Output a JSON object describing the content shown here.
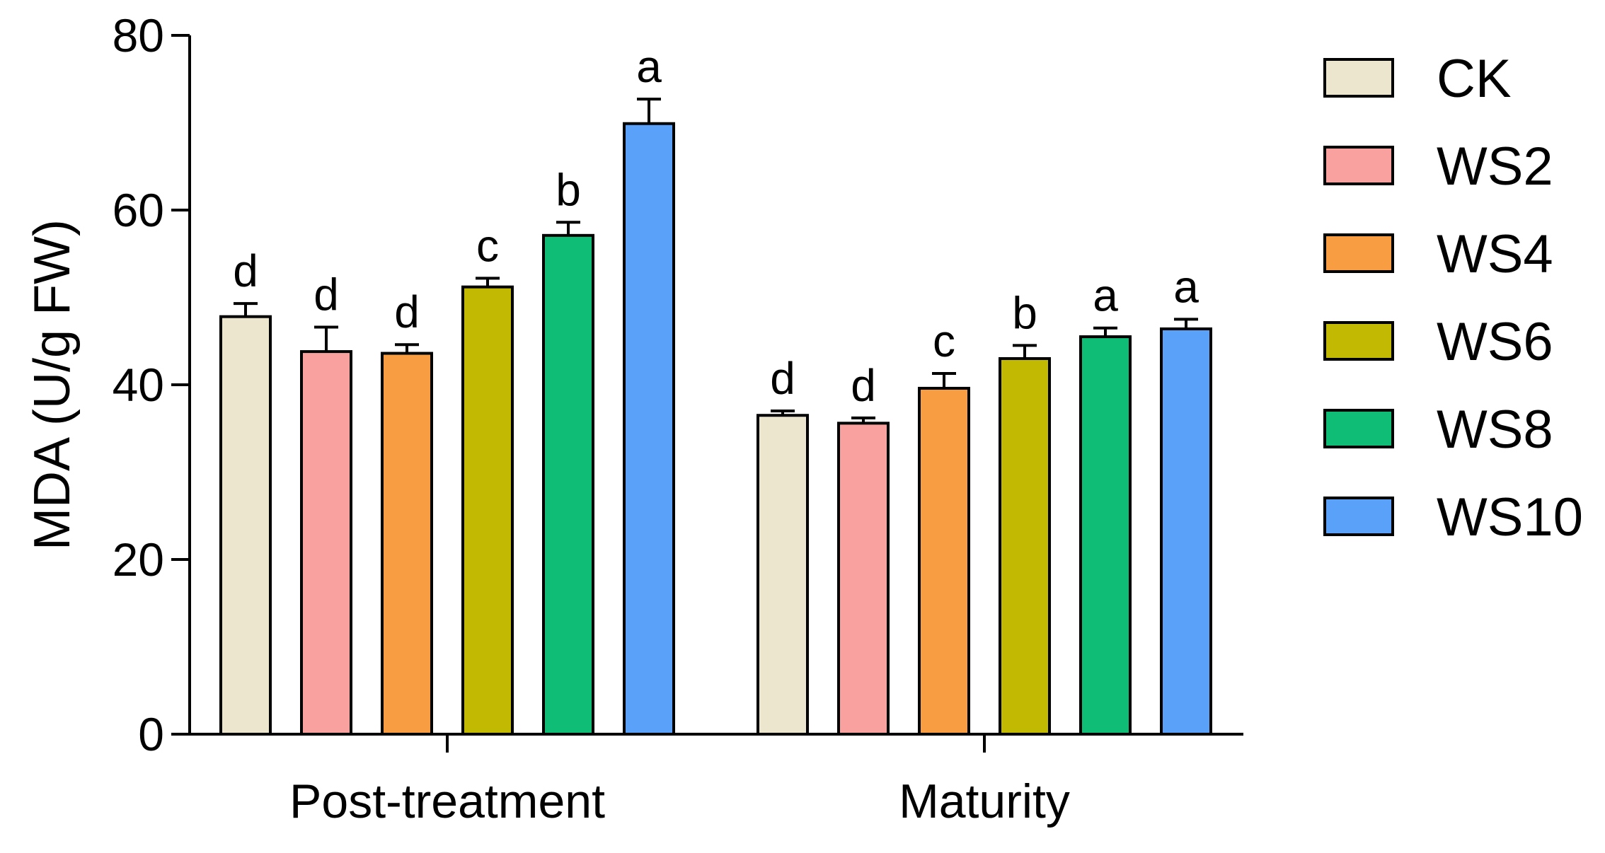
{
  "chart_data": {
    "type": "bar",
    "title": "",
    "xlabel": "",
    "ylabel": "MDA (U/g FW)",
    "ylim": [
      0,
      80
    ],
    "yticks": [
      0,
      20,
      40,
      60,
      80
    ],
    "ytick_labels": [
      "0",
      "20",
      "40",
      "60",
      "80"
    ],
    "grid": false,
    "legend_position": "right",
    "categories": [
      "Post-treatment",
      "Maturity"
    ],
    "series": [
      {
        "name": "CK",
        "color": "#ece6cf",
        "values": [
          47.8,
          36.5
        ],
        "errors": [
          1.5,
          0.5
        ],
        "significance": [
          "d",
          "d"
        ]
      },
      {
        "name": "WS2",
        "color": "#f9a19e",
        "values": [
          43.8,
          35.6
        ],
        "errors": [
          2.8,
          0.6
        ],
        "significance": [
          "d",
          "d"
        ]
      },
      {
        "name": "WS4",
        "color": "#f99d42",
        "values": [
          43.6,
          39.6
        ],
        "errors": [
          1.0,
          1.7
        ],
        "significance": [
          "d",
          "c"
        ]
      },
      {
        "name": "WS6",
        "color": "#c2b903",
        "values": [
          51.2,
          43.0
        ],
        "errors": [
          1.0,
          1.5
        ],
        "significance": [
          "c",
          "b"
        ]
      },
      {
        "name": "WS8",
        "color": "#0fbd77",
        "values": [
          57.1,
          45.5
        ],
        "errors": [
          1.5,
          1.0
        ],
        "significance": [
          "b",
          "a"
        ]
      },
      {
        "name": "WS10",
        "color": "#5aa1f9",
        "values": [
          69.9,
          46.4
        ],
        "errors": [
          2.8,
          1.1
        ],
        "significance": [
          "a",
          "a"
        ]
      }
    ]
  }
}
